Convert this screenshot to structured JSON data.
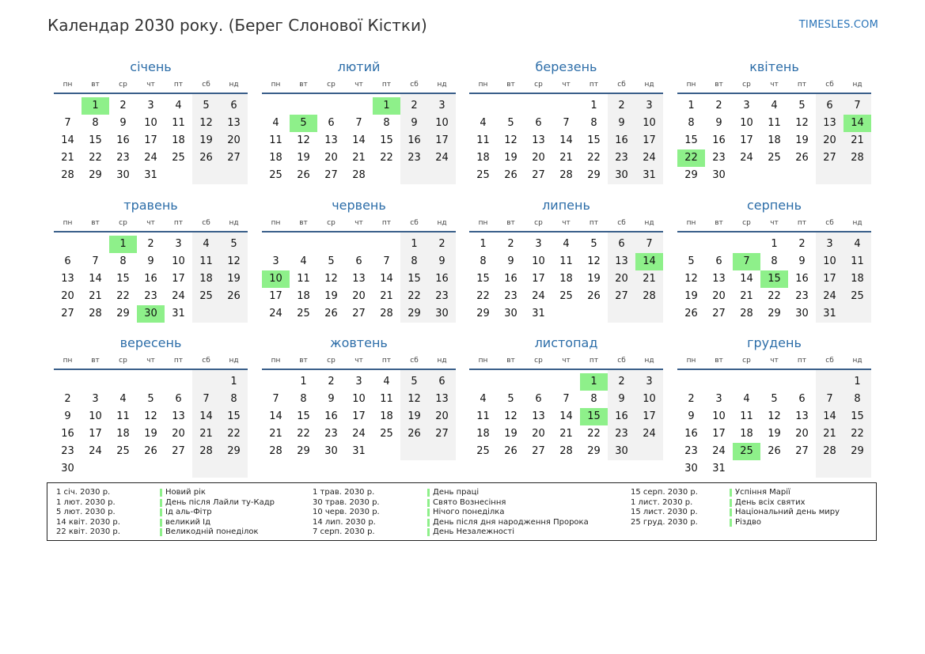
{
  "title": "Календар 2030 року. (Берег Слонової Кістки)",
  "site": "TIMESLES.COM",
  "weekday_labels": [
    "пн",
    "вт",
    "ср",
    "чт",
    "пт",
    "сб",
    "нд"
  ],
  "colors": {
    "holiday": "#8ef08a",
    "weekend": "#f2f2f2",
    "accent": "#2c6da8"
  },
  "months": [
    {
      "name": "січень",
      "first_weekday": 1,
      "days": 31,
      "holidays": [
        1
      ]
    },
    {
      "name": "лютий",
      "first_weekday": 4,
      "days": 28,
      "holidays": [
        1,
        5
      ]
    },
    {
      "name": "березень",
      "first_weekday": 4,
      "days": 31,
      "holidays": []
    },
    {
      "name": "квітень",
      "first_weekday": 0,
      "days": 30,
      "holidays": [
        14,
        22
      ]
    },
    {
      "name": "травень",
      "first_weekday": 2,
      "days": 31,
      "holidays": [
        1,
        30
      ]
    },
    {
      "name": "червень",
      "first_weekday": 5,
      "days": 30,
      "holidays": [
        10
      ]
    },
    {
      "name": "липень",
      "first_weekday": 0,
      "days": 31,
      "holidays": [
        14
      ]
    },
    {
      "name": "серпень",
      "first_weekday": 3,
      "days": 31,
      "holidays": [
        7,
        15
      ]
    },
    {
      "name": "вересень",
      "first_weekday": 6,
      "days": 30,
      "holidays": []
    },
    {
      "name": "жовтень",
      "first_weekday": 1,
      "days": 31,
      "holidays": []
    },
    {
      "name": "листопад",
      "first_weekday": 4,
      "days": 30,
      "holidays": [
        1,
        15
      ]
    },
    {
      "name": "грудень",
      "first_weekday": 6,
      "days": 31,
      "holidays": [
        25
      ]
    }
  ],
  "holidays": [
    {
      "date": "1 січ. 2030 р.",
      "name": "Новий рік"
    },
    {
      "date": "1 лют. 2030 р.",
      "name": "День після Лайли ту-Кадр"
    },
    {
      "date": "5 лют. 2030 р.",
      "name": "Ід аль-Фітр"
    },
    {
      "date": "14 квіт. 2030 р.",
      "name": "великий Ід"
    },
    {
      "date": "22 квіт. 2030 р.",
      "name": "Великодній понеділок"
    },
    {
      "date": "1 трав. 2030 р.",
      "name": "День праці"
    },
    {
      "date": "30 трав. 2030 р.",
      "name": "Свято Вознесіння"
    },
    {
      "date": "10 черв. 2030 р.",
      "name": "Нічого понеділка"
    },
    {
      "date": "14 лип. 2030 р.",
      "name": "День після дня народження Пророка"
    },
    {
      "date": "7 серп. 2030 р.",
      "name": "День Незалежності"
    },
    {
      "date": "15 серп. 2030 р.",
      "name": "Успіння Марії"
    },
    {
      "date": "1 лист. 2030 р.",
      "name": "День всіх святих"
    },
    {
      "date": "15 лист. 2030 р.",
      "name": "Національний день миру"
    },
    {
      "date": "25 груд. 2030 р.",
      "name": "Різдво"
    }
  ]
}
